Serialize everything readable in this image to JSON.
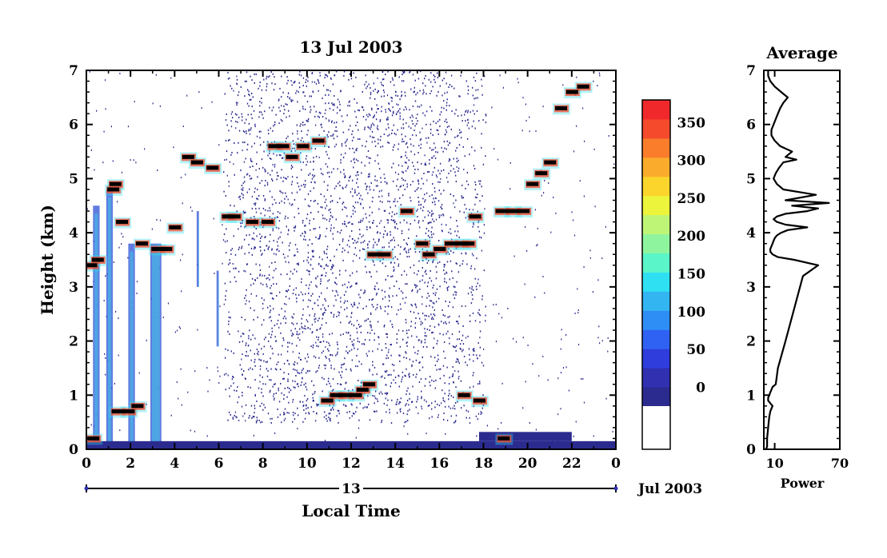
{
  "chart_data": [
    {
      "type": "heatmap",
      "title": "13 Jul 2003",
      "xlabel": "Local Time",
      "ylabel": "Height (km)",
      "xlim": [
        0,
        24
      ],
      "ylim": [
        0,
        7
      ],
      "x_ticks": [
        "0",
        "2",
        "4",
        "6",
        "8",
        "10",
        "12",
        "14",
        "16",
        "18",
        "20",
        "22",
        "0"
      ],
      "y_ticks": [
        "0",
        "1",
        "2",
        "3",
        "4",
        "5",
        "6",
        "7"
      ],
      "date_axis": {
        "day_label": "13",
        "month_label": "Jul 2003"
      },
      "colorbar": {
        "ticks": [
          "0",
          "50",
          "100",
          "150",
          "200",
          "250",
          "300",
          "350"
        ],
        "range": [
          -25,
          380
        ],
        "colors": [
          "#2b2b8f",
          "#3030b0",
          "#2e3ddc",
          "#2f62f2",
          "#2f8ef5",
          "#33b5f2",
          "#2fe0f2",
          "#5af5c8",
          "#8ef59e",
          "#bff576",
          "#ecf53c",
          "#fbd52c",
          "#fbab2c",
          "#fa7d2c",
          "#f54a2c",
          "#f0282c"
        ]
      },
      "series": [
        {
          "y": [
            3.4,
            3.5,
            4.8,
            4.9,
            4.2,
            3.8,
            3.7,
            3.7,
            4.1,
            5.4,
            5.3,
            5.2,
            4.3,
            4.3,
            4.2,
            4.2,
            5.6,
            5.6,
            5.4,
            5.6,
            5.7,
            3.6,
            3.6,
            4.4,
            3.8,
            3.6,
            3.7,
            3.8,
            3.8,
            3.8,
            4.3,
            4.4,
            4.4,
            4.4,
            4.9,
            5.1,
            5.3,
            6.3,
            6.6,
            6.7
          ],
          "x": [
            0.2,
            0.5,
            1.2,
            1.3,
            1.6,
            2.5,
            3.2,
            3.6,
            4.0,
            4.6,
            5.0,
            5.7,
            6.4,
            6.7,
            7.5,
            8.2,
            8.5,
            8.9,
            9.3,
            9.8,
            10.5,
            13.0,
            13.5,
            14.5,
            15.2,
            15.5,
            16.0,
            16.5,
            17.0,
            17.3,
            17.6,
            18.8,
            19.3,
            19.8,
            20.2,
            20.6,
            21.0,
            21.5,
            22.0,
            22.5
          ]
        },
        {
          "y": [
            0.9,
            1.0,
            1.0,
            1.0,
            1.1,
            1.2,
            1.0,
            0.9,
            0.2,
            0.2,
            0.7,
            0.7,
            0.8
          ],
          "x": [
            10.9,
            11.3,
            11.7,
            12.2,
            12.5,
            12.8,
            17.1,
            17.8,
            0.3,
            18.9,
            1.4,
            1.9,
            2.3
          ]
        }
      ]
    },
    {
      "type": "line",
      "title": "Average",
      "xlabel": "Power",
      "ylabel": "",
      "xlim": [
        0,
        70
      ],
      "ylim": [
        0,
        7
      ],
      "x_ticks": [
        "10",
        "70"
      ],
      "y_ticks": [
        "0",
        "1",
        "2",
        "3",
        "4",
        "5",
        "6",
        "7"
      ],
      "series": [
        {
          "x": [
            2,
            3,
            3,
            4,
            5,
            6,
            8,
            6,
            4,
            4,
            5,
            6,
            7,
            8,
            11,
            13,
            20,
            36,
            50,
            28,
            13,
            8,
            6,
            6,
            7,
            8,
            9,
            10,
            12,
            16,
            22,
            40,
            20,
            12,
            9,
            12,
            20,
            40,
            50,
            26,
            60,
            20,
            48,
            18,
            12,
            9,
            11,
            14,
            16,
            18,
            30,
            20,
            26,
            15,
            10,
            7,
            7,
            9,
            11,
            13,
            15,
            18,
            22,
            16,
            10,
            6,
            4,
            4
          ],
          "y": [
            0,
            0.05,
            0.2,
            0.4,
            0.6,
            0.7,
            0.8,
            0.85,
            0.9,
            0.95,
            1.0,
            1.05,
            1.1,
            1.15,
            1.2,
            1.5,
            2.0,
            3.2,
            3.4,
            3.5,
            3.55,
            3.6,
            3.65,
            3.7,
            3.75,
            3.8,
            3.85,
            3.9,
            3.95,
            4.0,
            4.05,
            4.1,
            4.15,
            4.2,
            4.25,
            4.3,
            4.35,
            4.4,
            4.45,
            4.5,
            4.55,
            4.6,
            4.7,
            4.8,
            4.9,
            5.0,
            5.1,
            5.2,
            5.25,
            5.3,
            5.35,
            5.4,
            5.5,
            5.6,
            5.7,
            5.8,
            5.9,
            6.0,
            6.1,
            6.2,
            6.3,
            6.4,
            6.5,
            6.6,
            6.7,
            6.8,
            6.9,
            7.0
          ]
        }
      ]
    }
  ]
}
